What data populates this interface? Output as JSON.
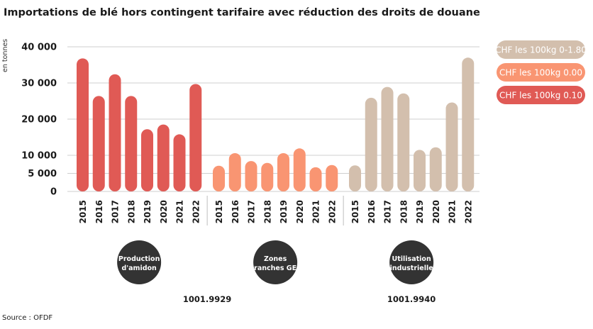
{
  "chart_data": {
    "type": "bar",
    "title": "Importations de blé hors contingent tarifaire avec réduction des droits de douane",
    "ylabel": "en tonnes",
    "ylim": [
      0,
      40000
    ],
    "yticks": [
      0,
      5000,
      10000,
      20000,
      30000,
      40000
    ],
    "ytick_labels": [
      "0",
      "5 000",
      "10 000",
      "20 000",
      "30 000",
      "40 000"
    ],
    "grid": true,
    "legend_position": "right",
    "groups": [
      {
        "name": "CHF les 100kg 0.10",
        "color": "#e05a55",
        "category_label": "Production d'amidon",
        "category_lines": [
          "Production",
          "d'amidon"
        ],
        "categories": [
          "2015",
          "2016",
          "2017",
          "2018",
          "2019",
          "2020",
          "2021",
          "2022"
        ],
        "values": [
          36800,
          26400,
          32400,
          26400,
          17200,
          18500,
          15800,
          29700
        ]
      },
      {
        "name": "CHF les 100kg 0.00",
        "color": "#f99572",
        "category_label": "Zones ranches GE",
        "category_lines": [
          "Zones",
          "ranches GE"
        ],
        "categories": [
          "2015",
          "2016",
          "2017",
          "2018",
          "2019",
          "2020",
          "2021",
          "2022"
        ],
        "values": [
          7100,
          10600,
          8400,
          7900,
          10600,
          11900,
          6700,
          7300
        ]
      },
      {
        "name": "CHF les 100kg 0-1.80",
        "color": "#d3bfad",
        "category_label": "Utilisation industrielle",
        "category_lines": [
          "Utilisation",
          "industrielle"
        ],
        "categories": [
          "2015",
          "2016",
          "2017",
          "2018",
          "2019",
          "2020",
          "2021",
          "2022"
        ],
        "values": [
          7200,
          25900,
          28900,
          27100,
          11500,
          12200,
          24600,
          37000
        ]
      }
    ],
    "legend_order": [
      "CHF les 100kg 0-1.80",
      "CHF les 100kg 0.00",
      "CHF les 100kg 0.10"
    ],
    "tariff_codes": [
      {
        "label": "1001.9929"
      },
      {
        "label": "1001.9940"
      }
    ],
    "source": "Source : OFDF"
  },
  "colors": {
    "circle": "#333333",
    "text": "#1a1a1a"
  }
}
